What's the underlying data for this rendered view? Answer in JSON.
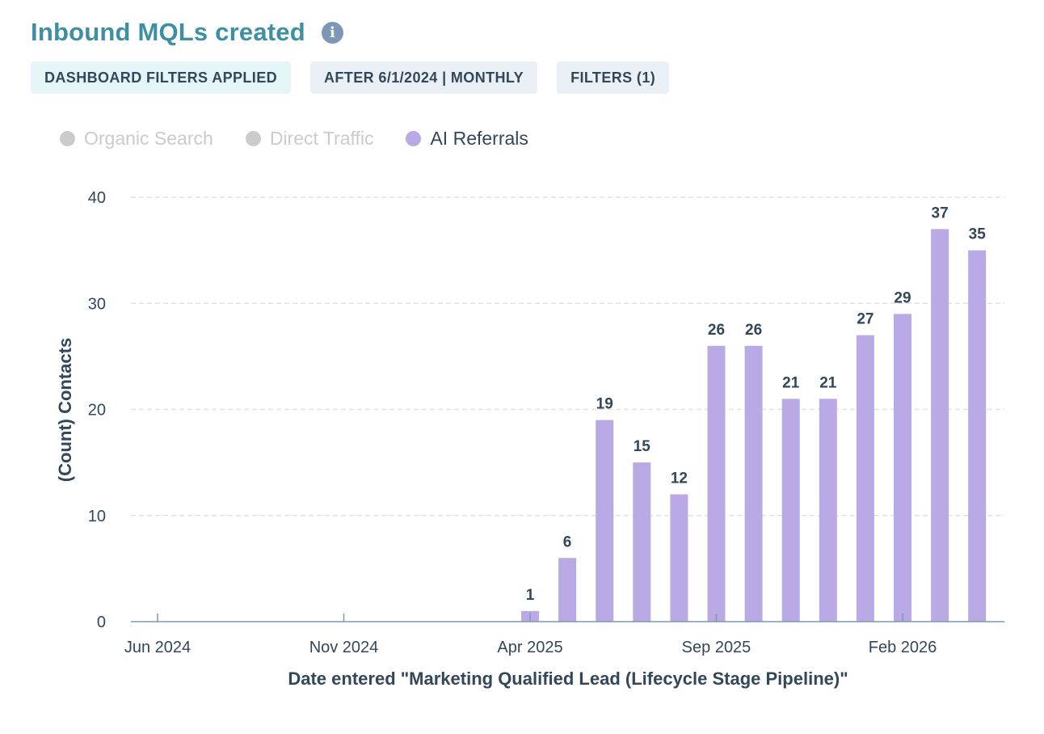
{
  "header": {
    "title": "Inbound MQLs created",
    "info_icon": "info-icon"
  },
  "chips": [
    {
      "label": "DASHBOARD FILTERS APPLIED"
    },
    {
      "label": "AFTER 6/1/2024 | MONTHLY"
    },
    {
      "label": "FILTERS (1)"
    }
  ],
  "legend": [
    {
      "label": "Organic Search",
      "color": "#cbcbcb",
      "active": false
    },
    {
      "label": "Direct Traffic",
      "color": "#cbcbcb",
      "active": false
    },
    {
      "label": "AI Referrals",
      "color": "#b9a9e4",
      "active": true
    }
  ],
  "chart_data": {
    "type": "bar",
    "xlabel": "Date entered \"Marketing Qualified Lead (Lifecycle Stage Pipeline)\"",
    "ylabel": "(Count) Contacts",
    "ylim": [
      0,
      40
    ],
    "yticks": [
      0,
      10,
      20,
      30,
      40
    ],
    "grid": true,
    "legend_position": "top-left",
    "categories": [
      "Jun 2024",
      "Jul 2024",
      "Aug 2024",
      "Sep 2024",
      "Oct 2024",
      "Nov 2024",
      "Dec 2024",
      "Jan 2025",
      "Feb 2025",
      "Mar 2025",
      "Apr 2025",
      "May 2025",
      "Jun 2025",
      "Jul 2025",
      "Aug 2025",
      "Sep 2025",
      "Oct 2025",
      "Nov 2025",
      "Dec 2025",
      "Jan 2026",
      "Feb 2026",
      "Mar 2026",
      "Apr 2026"
    ],
    "xtick_labels": [
      "Jun 2024",
      "Nov 2024",
      "Apr 2025",
      "Sep 2025",
      "Feb 2026"
    ],
    "series": [
      {
        "name": "AI Referrals",
        "color": "#b9a9e4",
        "values": [
          0,
          0,
          0,
          0,
          0,
          0,
          0,
          0,
          0,
          0,
          1,
          6,
          19,
          15,
          12,
          26,
          26,
          21,
          21,
          27,
          29,
          37,
          35
        ]
      }
    ]
  }
}
